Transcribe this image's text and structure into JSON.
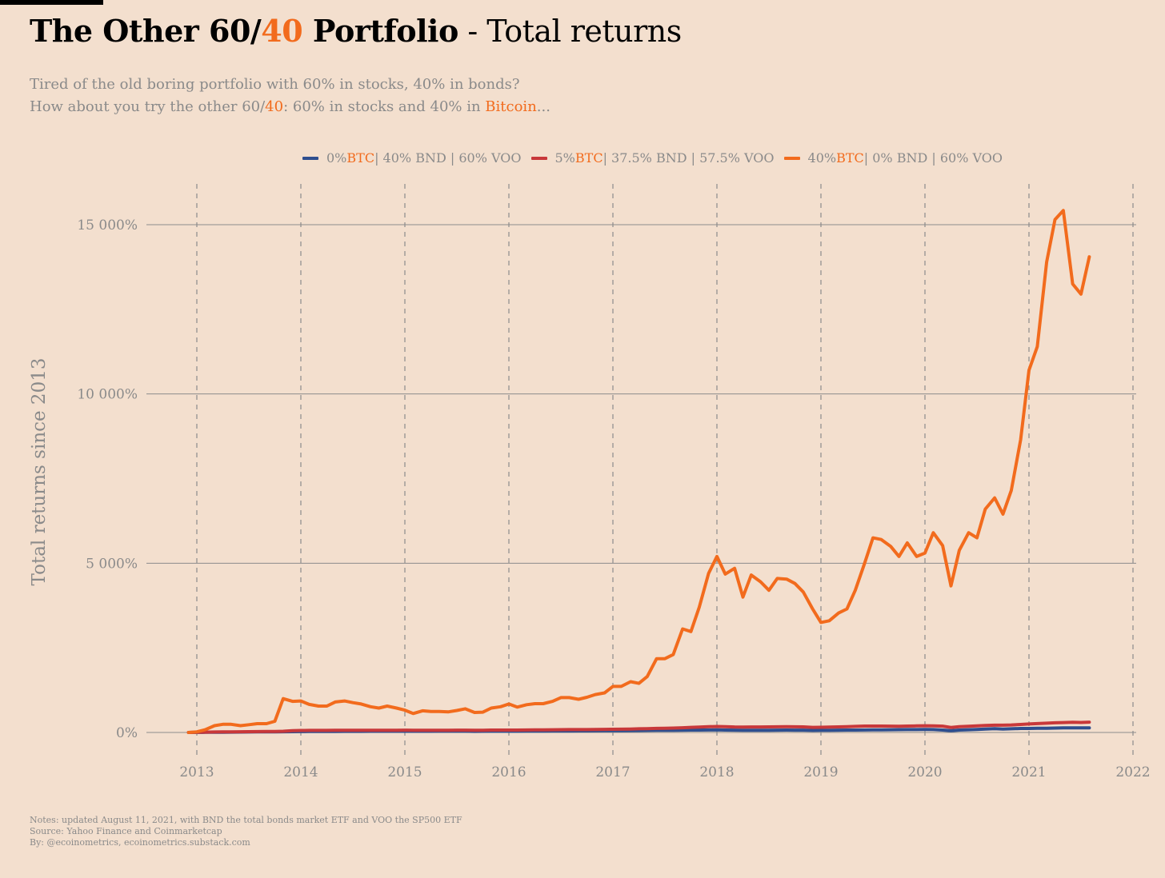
{
  "title": {
    "part1": "The Other 60/",
    "part2": "40",
    "part3": " Portfolio",
    "part4": " - Total returns"
  },
  "subtitle": {
    "line1": "Tired of the old boring portfolio with 60% in stocks, 40% in bonds?",
    "line2_a": "How about you try the other 60/",
    "line2_b": "40",
    "line2_c": ": 60% in stocks and 40% in ",
    "line2_d": "Bitcoin",
    "line2_e": "..."
  },
  "legend": [
    {
      "pre": "0% ",
      "btc": "BTC",
      "post": " | 40% BND | 60% VOO",
      "color": "#2e4e8f"
    },
    {
      "pre": "5% ",
      "btc": "BTC",
      "post": " | 37.5% BND | 57.5% VOO",
      "color": "#c8383a"
    },
    {
      "pre": "40% ",
      "btc": "BTC",
      "post": " | 0% BND | 60% VOO",
      "color": "#f26b1d"
    }
  ],
  "notes": {
    "line1": "Notes: updated August 11, 2021, with BND the total bonds market ETF and VOO the SP500 ETF",
    "line2": "Source: Yahoo Finance and Coinmarketcap",
    "line3": "By: @ecoinometrics, ecoinometrics.substack.com"
  },
  "chart_data": {
    "type": "line",
    "ylabel": "Total returns since 2013",
    "xlabel": "",
    "xlim": [
      2012.92,
      2022
    ],
    "ylim": [
      -500,
      16000
    ],
    "x_ticks": [
      2013,
      2014,
      2015,
      2016,
      2017,
      2018,
      2019,
      2020,
      2021,
      2022
    ],
    "x_tick_labels": [
      "2013",
      "2014",
      "2015",
      "2016",
      "2017",
      "2018",
      "2019",
      "2020",
      "2021",
      "2022"
    ],
    "y_ticks": [
      0,
      5000,
      10000,
      15000
    ],
    "y_tick_labels": [
      "0%",
      "5 000%",
      "10 000%",
      "15 000%"
    ],
    "grid": {
      "horizontal": "solid",
      "vertical": "dashed"
    },
    "legend_position": "top-center",
    "x": [
      2012.92,
      2013.0,
      2013.08,
      2013.17,
      2013.25,
      2013.33,
      2013.42,
      2013.5,
      2013.58,
      2013.67,
      2013.75,
      2013.83,
      2013.92,
      2014.0,
      2014.08,
      2014.17,
      2014.25,
      2014.33,
      2014.42,
      2014.5,
      2014.58,
      2014.67,
      2014.75,
      2014.83,
      2014.92,
      2015.0,
      2015.08,
      2015.17,
      2015.25,
      2015.33,
      2015.42,
      2015.5,
      2015.58,
      2015.67,
      2015.75,
      2015.83,
      2015.92,
      2016.0,
      2016.08,
      2016.17,
      2016.25,
      2016.33,
      2016.42,
      2016.5,
      2016.58,
      2016.67,
      2016.75,
      2016.83,
      2016.92,
      2017.0,
      2017.08,
      2017.17,
      2017.25,
      2017.33,
      2017.42,
      2017.5,
      2017.58,
      2017.67,
      2017.75,
      2017.83,
      2017.92,
      2018.0,
      2018.08,
      2018.17,
      2018.25,
      2018.33,
      2018.42,
      2018.5,
      2018.58,
      2018.67,
      2018.75,
      2018.83,
      2018.92,
      2019.0,
      2019.08,
      2019.17,
      2019.25,
      2019.33,
      2019.42,
      2019.5,
      2019.58,
      2019.67,
      2019.75,
      2019.83,
      2019.92,
      2020.0,
      2020.08,
      2020.17,
      2020.25,
      2020.33,
      2020.42,
      2020.5,
      2020.58,
      2020.67,
      2020.75,
      2020.83,
      2020.92,
      2021.0,
      2021.08,
      2021.17,
      2021.25,
      2021.33,
      2021.42,
      2021.5,
      2021.58
    ],
    "series": [
      {
        "name": "0% BTC | 40% BND | 60% VOO",
        "color": "#2e4e8f",
        "values": [
          0,
          2,
          4,
          6,
          8,
          10,
          12,
          14,
          16,
          18,
          20,
          22,
          24,
          26,
          28,
          29,
          30,
          31,
          32,
          33,
          34,
          35,
          35,
          36,
          36,
          36,
          36,
          36,
          36,
          37,
          37,
          37,
          37,
          34,
          36,
          38,
          38,
          37,
          38,
          40,
          42,
          43,
          44,
          45,
          46,
          47,
          48,
          49,
          51,
          53,
          55,
          57,
          59,
          61,
          63,
          64,
          66,
          68,
          70,
          72,
          74,
          75,
          72,
          68,
          66,
          65,
          66,
          67,
          69,
          70,
          69,
          68,
          62,
          63,
          65,
          68,
          70,
          72,
          74,
          76,
          78,
          80,
          82,
          84,
          86,
          88,
          84,
          72,
          55,
          70,
          80,
          90,
          100,
          110,
          100,
          108,
          118,
          118,
          122,
          126,
          130,
          134,
          138,
          136,
          138
        ]
      },
      {
        "name": "5% BTC | 37.5% BND | 57.5% VOO",
        "color": "#c8383a",
        "values": [
          0,
          5,
          10,
          15,
          18,
          20,
          22,
          24,
          26,
          28,
          30,
          35,
          55,
          60,
          62,
          62,
          62,
          63,
          65,
          66,
          66,
          64,
          64,
          66,
          67,
          68,
          66,
          65,
          66,
          67,
          67,
          68,
          68,
          65,
          66,
          70,
          72,
          71,
          72,
          74,
          76,
          78,
          80,
          82,
          84,
          85,
          86,
          88,
          92,
          95,
          98,
          102,
          108,
          114,
          120,
          125,
          130,
          140,
          150,
          160,
          170,
          178,
          172,
          162,
          160,
          162,
          164,
          166,
          168,
          170,
          168,
          166,
          152,
          153,
          158,
          165,
          172,
          180,
          188,
          190,
          188,
          186,
          184,
          190,
          194,
          198,
          196,
          186,
          148,
          170,
          182,
          196,
          206,
          216,
          214,
          222,
          236,
          250,
          262,
          274,
          286,
          294,
          300,
          296,
          305
        ]
      },
      {
        "name": "40% BTC | 0% BND | 60% VOO",
        "color": "#f26b1d",
        "values": [
          0,
          20,
          80,
          200,
          240,
          240,
          200,
          230,
          260,
          260,
          330,
          1000,
          920,
          930,
          830,
          780,
          780,
          900,
          930,
          880,
          840,
          760,
          720,
          780,
          720,
          660,
          560,
          640,
          620,
          620,
          610,
          650,
          700,
          590,
          600,
          720,
          760,
          840,
          750,
          820,
          850,
          850,
          920,
          1030,
          1030,
          980,
          1040,
          1120,
          1170,
          1360,
          1360,
          1500,
          1450,
          1650,
          2180,
          2180,
          2300,
          3060,
          2980,
          3700,
          4700,
          5200,
          4680,
          4850,
          4000,
          4650,
          4450,
          4200,
          4550,
          4530,
          4400,
          4150,
          3650,
          3250,
          3300,
          3530,
          3650,
          4200,
          5000,
          5750,
          5700,
          5500,
          5200,
          5600,
          5200,
          5300,
          5900,
          5520,
          4330,
          5380,
          5900,
          5750,
          6600,
          6930,
          6450,
          7150,
          8650,
          10700,
          11400,
          13900,
          15150,
          15420,
          13250,
          12950,
          14050
        ]
      }
    ]
  }
}
